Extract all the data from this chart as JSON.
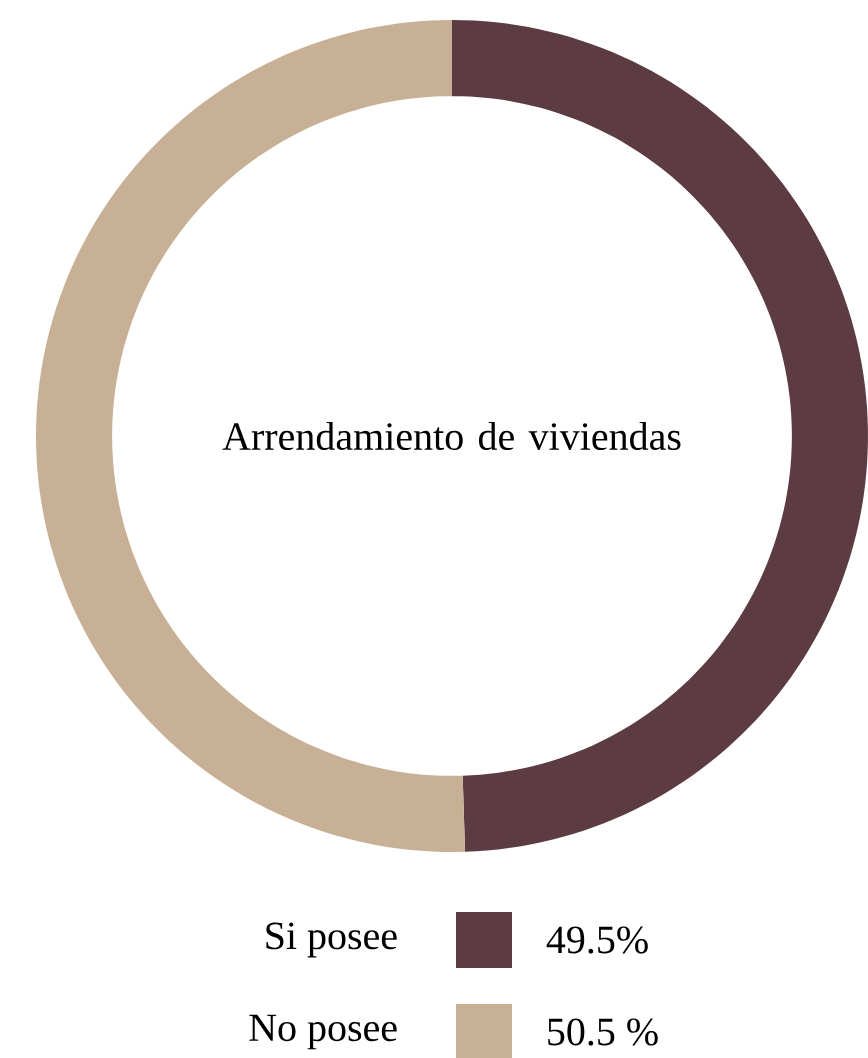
{
  "chart_data": {
    "type": "donut",
    "title": "Arrendamiento de viviendas",
    "categories": [
      "Si posee",
      "No posee"
    ],
    "values": [
      49.5,
      50.5
    ],
    "value_labels": [
      "49.5%",
      "50.5 %"
    ],
    "colors": [
      "#5c3b43",
      "#c8b096"
    ],
    "legend": "bottom"
  }
}
